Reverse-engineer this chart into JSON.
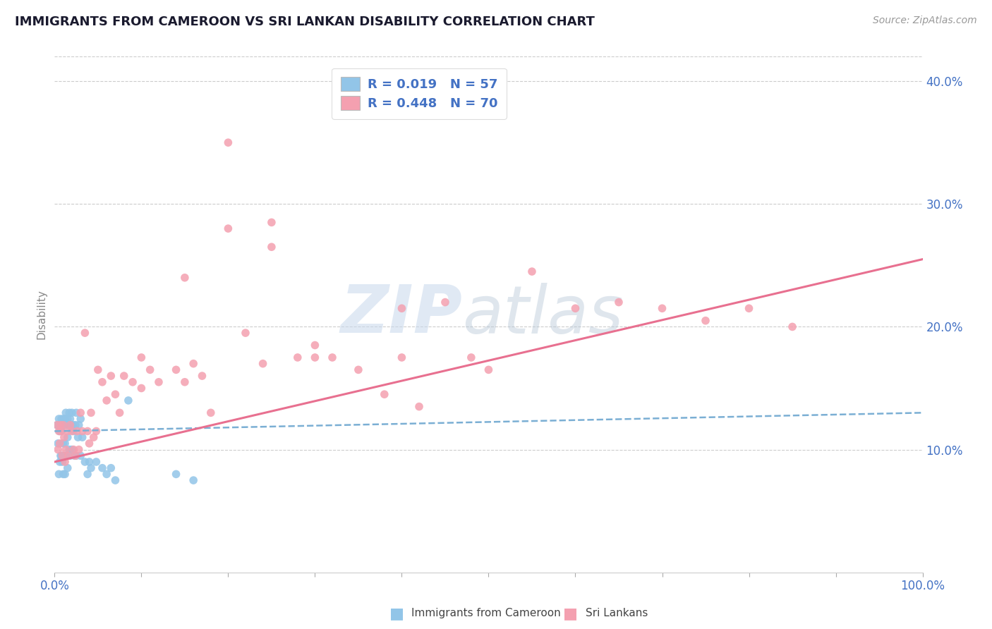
{
  "title": "IMMIGRANTS FROM CAMEROON VS SRI LANKAN DISABILITY CORRELATION CHART",
  "source": "Source: ZipAtlas.com",
  "ylabel": "Disability",
  "xlim": [
    0.0,
    1.0
  ],
  "ylim": [
    0.0,
    0.42
  ],
  "xticks": [
    0.0,
    0.1,
    0.2,
    0.3,
    0.4,
    0.5,
    0.6,
    0.7,
    0.8,
    0.9,
    1.0
  ],
  "yticks": [
    0.0,
    0.1,
    0.2,
    0.3,
    0.4
  ],
  "xticklabels": [
    "0.0%",
    "",
    "",
    "",
    "",
    "",
    "",
    "",
    "",
    "",
    "100.0%"
  ],
  "yticklabels": [
    "",
    "10.0%",
    "20.0%",
    "30.0%",
    "40.0%"
  ],
  "legend_R_blue": "R = 0.019",
  "legend_N_blue": "N = 57",
  "legend_R_pink": "R = 0.448",
  "legend_N_pink": "N = 70",
  "blue_color": "#92C5E8",
  "pink_color": "#F4A0B0",
  "blue_line_color": "#7BAFD4",
  "pink_line_color": "#E87090",
  "watermark_zip": "ZIP",
  "watermark_atlas": "atlas",
  "background_color": "#FFFFFF",
  "grid_color": "#CCCCCC",
  "title_color": "#1A1A2E",
  "axis_label_color": "#4472C4",
  "legend_text_color": "#4472C4",
  "blue_scatter_x": [
    0.003,
    0.004,
    0.005,
    0.005,
    0.006,
    0.006,
    0.007,
    0.007,
    0.008,
    0.008,
    0.009,
    0.009,
    0.01,
    0.01,
    0.01,
    0.011,
    0.011,
    0.012,
    0.012,
    0.012,
    0.013,
    0.013,
    0.014,
    0.015,
    0.015,
    0.015,
    0.016,
    0.017,
    0.017,
    0.018,
    0.018,
    0.019,
    0.02,
    0.02,
    0.021,
    0.022,
    0.023,
    0.024,
    0.025,
    0.025,
    0.027,
    0.028,
    0.03,
    0.03,
    0.032,
    0.035,
    0.038,
    0.04,
    0.042,
    0.048,
    0.055,
    0.06,
    0.065,
    0.07,
    0.085,
    0.14,
    0.16
  ],
  "blue_scatter_y": [
    0.12,
    0.105,
    0.125,
    0.08,
    0.115,
    0.09,
    0.115,
    0.095,
    0.125,
    0.095,
    0.12,
    0.09,
    0.12,
    0.105,
    0.08,
    0.125,
    0.095,
    0.125,
    0.105,
    0.08,
    0.13,
    0.095,
    0.12,
    0.125,
    0.11,
    0.085,
    0.12,
    0.13,
    0.1,
    0.125,
    0.095,
    0.12,
    0.13,
    0.1,
    0.12,
    0.115,
    0.095,
    0.12,
    0.13,
    0.095,
    0.11,
    0.12,
    0.125,
    0.095,
    0.11,
    0.09,
    0.08,
    0.09,
    0.085,
    0.09,
    0.085,
    0.08,
    0.085,
    0.075,
    0.14,
    0.08,
    0.075
  ],
  "pink_scatter_x": [
    0.003,
    0.004,
    0.005,
    0.006,
    0.007,
    0.008,
    0.009,
    0.01,
    0.011,
    0.012,
    0.013,
    0.015,
    0.016,
    0.018,
    0.02,
    0.022,
    0.024,
    0.026,
    0.028,
    0.03,
    0.032,
    0.035,
    0.038,
    0.04,
    0.042,
    0.045,
    0.048,
    0.05,
    0.055,
    0.06,
    0.065,
    0.07,
    0.075,
    0.08,
    0.09,
    0.1,
    0.11,
    0.12,
    0.14,
    0.15,
    0.16,
    0.17,
    0.18,
    0.2,
    0.22,
    0.24,
    0.25,
    0.28,
    0.3,
    0.32,
    0.35,
    0.38,
    0.4,
    0.42,
    0.45,
    0.48,
    0.5,
    0.55,
    0.6,
    0.65,
    0.7,
    0.75,
    0.8,
    0.85,
    0.1,
    0.2,
    0.3,
    0.15,
    0.25,
    0.4
  ],
  "pink_scatter_y": [
    0.12,
    0.1,
    0.115,
    0.105,
    0.12,
    0.115,
    0.095,
    0.12,
    0.11,
    0.09,
    0.1,
    0.115,
    0.095,
    0.12,
    0.115,
    0.1,
    0.095,
    0.115,
    0.1,
    0.13,
    0.115,
    0.195,
    0.115,
    0.105,
    0.13,
    0.11,
    0.115,
    0.165,
    0.155,
    0.14,
    0.16,
    0.145,
    0.13,
    0.16,
    0.155,
    0.15,
    0.165,
    0.155,
    0.165,
    0.155,
    0.17,
    0.16,
    0.13,
    0.35,
    0.195,
    0.17,
    0.285,
    0.175,
    0.185,
    0.175,
    0.165,
    0.145,
    0.175,
    0.135,
    0.22,
    0.175,
    0.165,
    0.245,
    0.215,
    0.22,
    0.215,
    0.205,
    0.215,
    0.2,
    0.175,
    0.28,
    0.175,
    0.24,
    0.265,
    0.215
  ],
  "blue_trend_x": [
    0.0,
    1.0
  ],
  "blue_trend_y": [
    0.115,
    0.13
  ],
  "pink_trend_x": [
    0.0,
    1.0
  ],
  "pink_trend_y": [
    0.09,
    0.255
  ]
}
